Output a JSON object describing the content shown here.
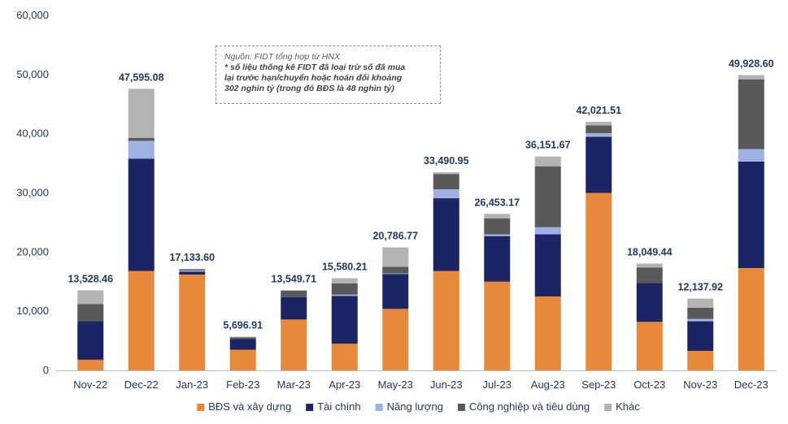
{
  "chart_data": {
    "type": "bar",
    "stacked": true,
    "categories": [
      "Nov-22",
      "Dec-22",
      "Jan-23",
      "Feb-23",
      "Mar-23",
      "Apr-23",
      "May-23",
      "Jun-23",
      "Jul-23",
      "Aug-23",
      "Sep-23",
      "Oct-23",
      "Nov-23",
      "Dec-23"
    ],
    "totals": [
      13528.46,
      47595.08,
      17133.6,
      5696.91,
      13549.71,
      15580.21,
      20786.77,
      33490.95,
      26453.17,
      36151.67,
      42021.51,
      18049.44,
      12137.92,
      49928.6
    ],
    "total_labels": [
      "13,528.46",
      "47,595.08",
      "17,133.60",
      "5,696.91",
      "13,549.71",
      "15,580.21",
      "20,786.77",
      "33,490.95",
      "26,453.17",
      "36,151.67",
      "42,021.51",
      "18,049.44",
      "12,137.92",
      "49,928.60"
    ],
    "series": [
      {
        "name": "BĐS và xây dựng",
        "color": "#e8883a",
        "values": [
          1800,
          16800,
          16200,
          3500,
          8600,
          4500,
          10400,
          16800,
          15000,
          12500,
          30000,
          8200,
          3300,
          17300
        ]
      },
      {
        "name": "Tài chính",
        "color": "#1b2566",
        "values": [
          6500,
          19000,
          500,
          1800,
          3800,
          8100,
          5900,
          12300,
          7700,
          10500,
          9500,
          6600,
          5000,
          18000
        ]
      },
      {
        "name": "Năng lượng",
        "color": "#9db2e3",
        "values": [
          0,
          3000,
          200,
          0,
          0,
          200,
          100,
          1500,
          300,
          1200,
          600,
          0,
          400,
          2100
        ]
      },
      {
        "name": "Công nghiệp và tiêu dùng",
        "color": "#595959",
        "values": [
          2900,
          500,
          200,
          300,
          1100,
          1900,
          1100,
          2600,
          2700,
          10300,
          1300,
          2600,
          1900,
          11800
        ]
      },
      {
        "name": "Khác",
        "color": "#b3b3b3",
        "values": [
          2328.46,
          8295.08,
          33.6,
          96.91,
          49.71,
          880.21,
          3286.77,
          290.95,
          753.17,
          1651.67,
          621.51,
          649.44,
          1537.92,
          728.6
        ]
      }
    ],
    "ylim": [
      0,
      60000
    ],
    "yticks": [
      0,
      10000,
      20000,
      30000,
      40000,
      50000,
      60000
    ],
    "ytick_labels": [
      "0",
      "10,000",
      "20,000",
      "30,000",
      "40,000",
      "50,000",
      "60,000"
    ],
    "legend_position": "bottom",
    "note": [
      "Nguồn: FIDT tổng hợp từ HNX",
      "* số liệu thống kê FIDT đã loại trừ số đã mua",
      "lại trước hạn/chuyển hoặc hoán đổi khoảng",
      "302 nghìn tỷ (trong đó BĐS là 48 nghìn tỷ)"
    ]
  }
}
